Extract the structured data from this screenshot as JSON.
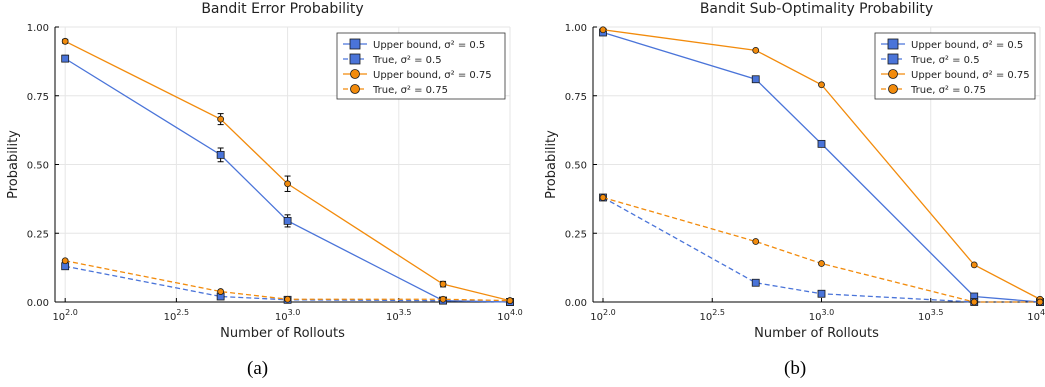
{
  "chart_data": [
    {
      "type": "line",
      "title": "Bandit Error Probability",
      "xlabel": "Number of Rollouts",
      "ylabel": "Probability",
      "xscale": "log10",
      "xlim": [
        90,
        10000
      ],
      "ylim": [
        0,
        1
      ],
      "xticks": [
        {
          "base": "10",
          "exp": "2.0"
        },
        {
          "base": "10",
          "exp": "2.5"
        },
        {
          "base": "10",
          "exp": "3.0"
        },
        {
          "base": "10",
          "exp": "3.5"
        },
        {
          "base": "10",
          "exp": "4.0"
        }
      ],
      "yticks": [
        "0.00",
        "0.25",
        "0.50",
        "0.75",
        "1.00"
      ],
      "grid": true,
      "legend_position": "top-right",
      "x": [
        100,
        500,
        1000,
        5000,
        10000
      ],
      "series": [
        {
          "name": "Upper bound, σ² = 0.5",
          "values": [
            0.885,
            0.535,
            0.295,
            0.005,
            0.0
          ],
          "err": [
            0.012,
            0.025,
            0.022,
            0.005,
            0.004
          ],
          "color": "#4a74d9",
          "marker": "square",
          "dash": false
        },
        {
          "name": "True, σ² = 0.5",
          "values": [
            0.13,
            0.02,
            0.008,
            0.005,
            0.0
          ],
          "color": "#4a74d9",
          "marker": "square",
          "dash": true
        },
        {
          "name": "Upper bound, σ² = 0.75",
          "values": [
            0.948,
            0.665,
            0.43,
            0.065,
            0.005
          ],
          "err": [
            0.007,
            0.02,
            0.028,
            0.01,
            0.004
          ],
          "color": "#f28b0c",
          "marker": "circle",
          "dash": false
        },
        {
          "name": "True, σ² = 0.75",
          "values": [
            0.15,
            0.038,
            0.01,
            0.01,
            0.005
          ],
          "color": "#f28b0c",
          "marker": "circle",
          "dash": true
        }
      ]
    },
    {
      "type": "line",
      "title": "Bandit Sub-Optimality Probability",
      "xlabel": "Number of Rollouts",
      "ylabel": "Probability",
      "xscale": "log10",
      "xlim": [
        90,
        10000
      ],
      "ylim": [
        0,
        1
      ],
      "xticks": [
        {
          "base": "10",
          "exp": "2.0"
        },
        {
          "base": "10",
          "exp": "2.5"
        },
        {
          "base": "10",
          "exp": "3.0"
        },
        {
          "base": "10",
          "exp": "3.5"
        },
        {
          "base": "10",
          "exp": "4.0"
        }
      ],
      "yticks": [
        "0.00",
        "0.25",
        "0.50",
        "0.75",
        "1.00"
      ],
      "grid": true,
      "legend_position": "top-right",
      "x": [
        100,
        500,
        1000,
        5000,
        10000
      ],
      "series": [
        {
          "name": "Upper bound, σ² = 0.5",
          "values": [
            0.98,
            0.81,
            0.575,
            0.02,
            0.0
          ],
          "color": "#4a74d9",
          "marker": "square",
          "dash": false
        },
        {
          "name": "True, σ² = 0.5",
          "values": [
            0.38,
            0.07,
            0.03,
            0.0,
            0.0
          ],
          "color": "#4a74d9",
          "marker": "square",
          "dash": true
        },
        {
          "name": "Upper bound, σ² = 0.75",
          "values": [
            0.99,
            0.915,
            0.79,
            0.135,
            0.01
          ],
          "color": "#f28b0c",
          "marker": "circle",
          "dash": false
        },
        {
          "name": "True, σ² = 0.75",
          "values": [
            0.38,
            0.22,
            0.14,
            0.0,
            0.0
          ],
          "color": "#f28b0c",
          "marker": "circle",
          "dash": true
        }
      ]
    }
  ],
  "captions": [
    "(a)",
    "(b)"
  ]
}
